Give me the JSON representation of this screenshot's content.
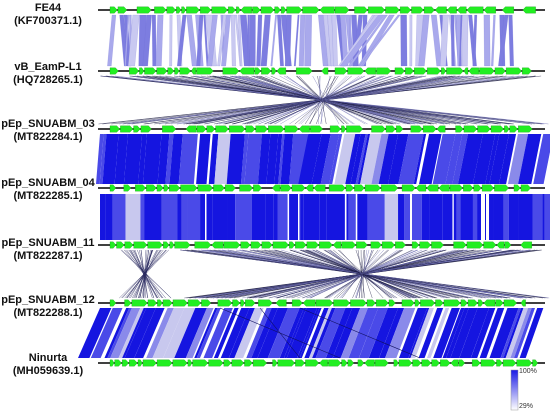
{
  "genomes": [
    {
      "name": "FE44",
      "accession": "(KF700371.1)"
    },
    {
      "name": "vB_EamP-L1",
      "accession": "(HQ728265.1)"
    },
    {
      "name": "pEp_SNUABM_03",
      "accession": "(MT822284.1)"
    },
    {
      "name": "pEp_SNUABM_04",
      "accession": "(MT822285.1)"
    },
    {
      "name": "pEp_SNUABM_11",
      "accession": "(MT822287.1)"
    },
    {
      "name": "pEp_SNUABM_12",
      "accession": "(MT822288.1)"
    },
    {
      "name": "Ninurta",
      "accession": "(MH059639.1)"
    }
  ],
  "legend": {
    "max_label": "100%",
    "min_label": "29%",
    "max_color": "#1a1ae6",
    "min_color": "#ffffff"
  },
  "colors": {
    "gene": "#22ee22",
    "genome_line": "#000000",
    "high_identity": "#1515e0",
    "low_identity": "#c8c8ee",
    "link_line": "#20206a"
  }
}
